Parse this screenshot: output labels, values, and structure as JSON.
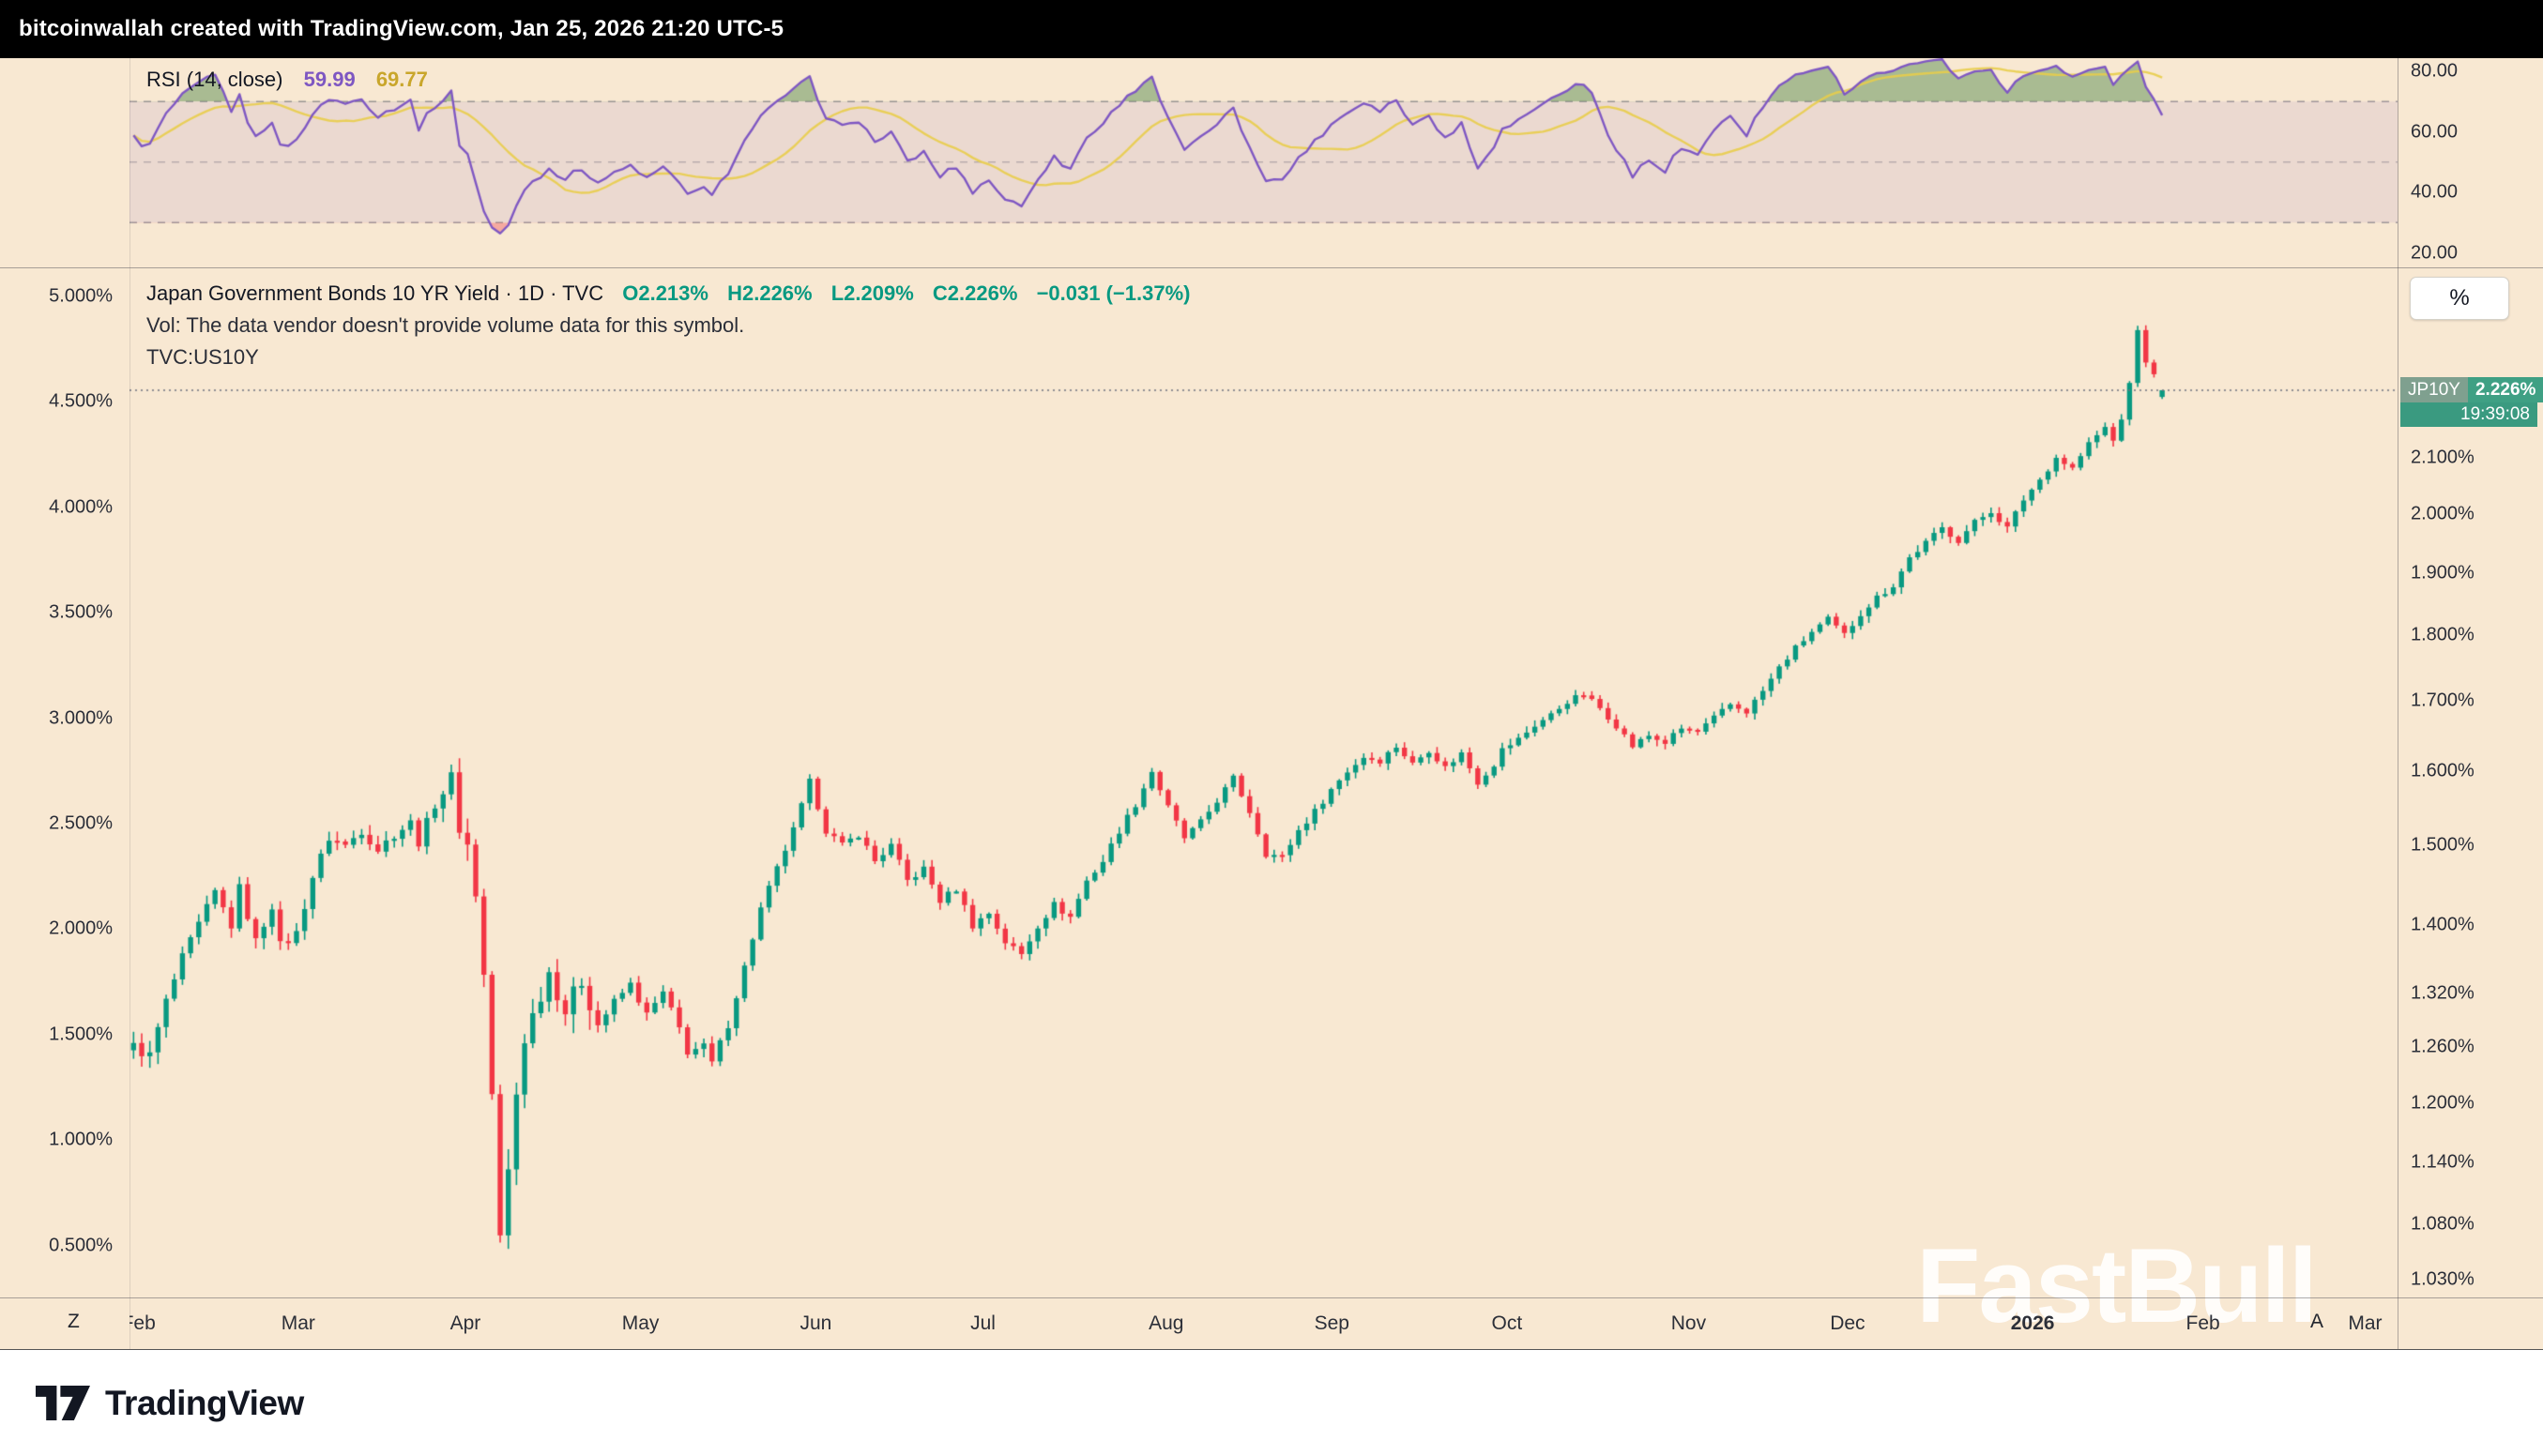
{
  "topbar": {
    "text": "bitcoinwallah created with TradingView.com, Jan 25, 2026 21:20 UTC-5"
  },
  "colors": {
    "background": "#f8e8d2",
    "candle_up": "#089981",
    "candle_down": "#f23645",
    "rsi_line": "#7e57c2",
    "rsi_ma": "#e8cd4a",
    "rsi_band_fill": "rgba(126,87,194,0.10)",
    "rsi_overbought_fill": "rgba(103,150,92,0.55)",
    "rsi_oversold_fill": "rgba(242,54,69,0.35)",
    "level_line": "rgba(90,90,105,0.55)",
    "price_line": "#6f7380",
    "ohlc_text": "#089981",
    "rsi_value_color": "#7e57c2",
    "rsi_ma_value_color": "#c9a62b",
    "price_label_symbol_bg": "#7fa08f",
    "price_label_price_bg": "#3fa084",
    "price_label_countdown_bg": "#3a9a80"
  },
  "rsi_panel": {
    "legend_label": "RSI (14, close)",
    "value": "59.99",
    "ma_value": "69.77",
    "axis_ticks": [
      "80.00",
      "60.00",
      "40.00",
      "20.00"
    ],
    "axis_tick_values": [
      80,
      60,
      40,
      20
    ],
    "range": {
      "min": 15.2,
      "max": 84.34
    },
    "levels": {
      "upper": 70,
      "middle": 50,
      "lower": 30
    }
  },
  "main_panel": {
    "legend": {
      "title": "Japan Government Bonds 10 YR Yield · 1D · TVC",
      "ohlc_parts": [
        "O2.213%",
        "H2.226%",
        "L2.209%",
        "C2.226%",
        "−0.031 (−1.37%)"
      ],
      "vol_note": "Vol: The data vendor doesn't provide volume data for this symbol.",
      "overlay_symbol": "TVC:US10Y"
    },
    "left_axis": {
      "scale": "linear",
      "min": 0.254,
      "max": 5.138,
      "ticks": [
        "5.000%",
        "4.500%",
        "4.000%",
        "3.500%",
        "3.000%",
        "2.500%",
        "2.000%",
        "1.500%",
        "1.000%",
        "0.500%"
      ],
      "tick_values": [
        5.0,
        4.5,
        4.0,
        3.5,
        3.0,
        2.5,
        2.0,
        1.5,
        1.0,
        0.5
      ]
    },
    "right_axis": {
      "scale": "log",
      "min": 1.014,
      "max": 2.476,
      "ticks": [
        "2.100%",
        "2.000%",
        "1.900%",
        "1.800%",
        "1.700%",
        "1.600%",
        "1.500%",
        "1.400%",
        "1.320%",
        "1.260%",
        "1.200%",
        "1.140%",
        "1.080%",
        "1.030%"
      ],
      "tick_values": [
        2.1,
        2.0,
        1.9,
        1.8,
        1.7,
        1.6,
        1.5,
        1.4,
        1.32,
        1.26,
        1.2,
        1.14,
        1.08,
        1.03
      ]
    },
    "percent_button": "%",
    "price_label": {
      "symbol": "JP10Y",
      "price": "2.226%",
      "countdown": "19:39:08",
      "value": 2.226
    }
  },
  "time_axis": {
    "labels": [
      {
        "text": "Feb",
        "pos": 0.004
      },
      {
        "text": "Mar",
        "pos": 0.0744
      },
      {
        "text": "Apr",
        "pos": 0.1481
      },
      {
        "text": "May",
        "pos": 0.2253
      },
      {
        "text": "Jun",
        "pos": 0.3026
      },
      {
        "text": "Jul",
        "pos": 0.3763
      },
      {
        "text": "Aug",
        "pos": 0.4571
      },
      {
        "text": "Sep",
        "pos": 0.5301
      },
      {
        "text": "Oct",
        "pos": 0.6073
      },
      {
        "text": "Nov",
        "pos": 0.6874
      },
      {
        "text": "Dec",
        "pos": 0.7575
      },
      {
        "text": "2026",
        "pos": 0.8391,
        "bold": true
      },
      {
        "text": "Feb",
        "pos": 0.9142
      },
      {
        "text": "Mar",
        "pos": 0.9857
      }
    ],
    "left_hint": "Z",
    "right_hint": "A"
  },
  "watermark": {
    "text": "FastBull"
  },
  "footer": {
    "brand": "TradingView"
  },
  "chart_data": {
    "type": "candlestick",
    "title": "Japan Government Bonds 10 YR Yield",
    "symbol": "JP10Y",
    "exchange": "TVC",
    "timeframe": "1D",
    "unit": "%",
    "x_range": [
      "Feb 2025",
      "Mar 2026"
    ],
    "right_axis_scale": "log",
    "bars_total": 250,
    "data_fraction": 0.898,
    "last_bar": {
      "open": 2.213,
      "high": 2.226,
      "low": 2.209,
      "close": 2.226,
      "change": -0.031,
      "change_pct": -1.37
    },
    "rsi": {
      "period": 14,
      "value": 59.99,
      "ma": 69.77
    },
    "close_anchors": [
      [
        0,
        1.26
      ],
      [
        2,
        1.25
      ],
      [
        4,
        1.31
      ],
      [
        6,
        1.36
      ],
      [
        8,
        1.4
      ],
      [
        10,
        1.44
      ],
      [
        12,
        1.4
      ],
      [
        13,
        1.445
      ],
      [
        15,
        1.38
      ],
      [
        17,
        1.425
      ],
      [
        18,
        1.375
      ],
      [
        20,
        1.39
      ],
      [
        22,
        1.46
      ],
      [
        24,
        1.51
      ],
      [
        26,
        1.5
      ],
      [
        28,
        1.52
      ],
      [
        30,
        1.495
      ],
      [
        32,
        1.515
      ],
      [
        34,
        1.53
      ],
      [
        35,
        1.505
      ],
      [
        37,
        1.555
      ],
      [
        39,
        1.59
      ],
      [
        40,
        1.525
      ],
      [
        41,
        1.5
      ],
      [
        42,
        1.44
      ],
      [
        43,
        1.34
      ],
      [
        44,
        1.21
      ],
      [
        45,
        1.065
      ],
      [
        46,
        1.13
      ],
      [
        47,
        1.21
      ],
      [
        48,
        1.27
      ],
      [
        49,
        1.295
      ],
      [
        51,
        1.345
      ],
      [
        53,
        1.3
      ],
      [
        55,
        1.335
      ],
      [
        57,
        1.285
      ],
      [
        59,
        1.31
      ],
      [
        61,
        1.33
      ],
      [
        63,
        1.295
      ],
      [
        65,
        1.32
      ],
      [
        67,
        1.28
      ],
      [
        68,
        1.255
      ],
      [
        70,
        1.26
      ],
      [
        71,
        1.242
      ],
      [
        73,
        1.285
      ],
      [
        75,
        1.35
      ],
      [
        77,
        1.42
      ],
      [
        79,
        1.47
      ],
      [
        81,
        1.52
      ],
      [
        83,
        1.585
      ],
      [
        85,
        1.52
      ],
      [
        87,
        1.5
      ],
      [
        89,
        1.515
      ],
      [
        91,
        1.48
      ],
      [
        93,
        1.5
      ],
      [
        95,
        1.455
      ],
      [
        97,
        1.47
      ],
      [
        99,
        1.43
      ],
      [
        101,
        1.445
      ],
      [
        103,
        1.4
      ],
      [
        105,
        1.415
      ],
      [
        107,
        1.38
      ],
      [
        109,
        1.365
      ],
      [
        111,
        1.4
      ],
      [
        113,
        1.425
      ],
      [
        115,
        1.41
      ],
      [
        117,
        1.455
      ],
      [
        119,
        1.48
      ],
      [
        121,
        1.52
      ],
      [
        123,
        1.555
      ],
      [
        125,
        1.6
      ],
      [
        127,
        1.55
      ],
      [
        129,
        1.51
      ],
      [
        131,
        1.53
      ],
      [
        133,
        1.56
      ],
      [
        135,
        1.59
      ],
      [
        137,
        1.545
      ],
      [
        139,
        1.49
      ],
      [
        141,
        1.485
      ],
      [
        143,
        1.52
      ],
      [
        145,
        1.545
      ],
      [
        147,
        1.575
      ],
      [
        149,
        1.6
      ],
      [
        151,
        1.62
      ],
      [
        153,
        1.615
      ],
      [
        155,
        1.635
      ],
      [
        157,
        1.61
      ],
      [
        159,
        1.63
      ],
      [
        161,
        1.605
      ],
      [
        163,
        1.625
      ],
      [
        165,
        1.585
      ],
      [
        167,
        1.61
      ],
      [
        168,
        1.63
      ],
      [
        170,
        1.645
      ],
      [
        172,
        1.665
      ],
      [
        174,
        1.68
      ],
      [
        176,
        1.7
      ],
      [
        178,
        1.71
      ],
      [
        180,
        1.69
      ],
      [
        182,
        1.665
      ],
      [
        184,
        1.635
      ],
      [
        186,
        1.65
      ],
      [
        188,
        1.64
      ],
      [
        190,
        1.66
      ],
      [
        192,
        1.655
      ],
      [
        194,
        1.675
      ],
      [
        196,
        1.695
      ],
      [
        198,
        1.685
      ],
      [
        200,
        1.715
      ],
      [
        202,
        1.75
      ],
      [
        204,
        1.78
      ],
      [
        206,
        1.805
      ],
      [
        208,
        1.825
      ],
      [
        210,
        1.8
      ],
      [
        212,
        1.835
      ],
      [
        214,
        1.86
      ],
      [
        216,
        1.88
      ],
      [
        218,
        1.925
      ],
      [
        220,
        1.95
      ],
      [
        222,
        1.975
      ],
      [
        224,
        1.955
      ],
      [
        226,
        1.985
      ],
      [
        228,
        2.005
      ],
      [
        230,
        1.975
      ],
      [
        232,
        2.025
      ],
      [
        234,
        2.06
      ],
      [
        236,
        2.1
      ],
      [
        238,
        2.08
      ],
      [
        240,
        2.125
      ],
      [
        242,
        2.155
      ],
      [
        243,
        2.13
      ],
      [
        244,
        2.17
      ],
      [
        245,
        2.24
      ],
      [
        246,
        2.345
      ],
      [
        247,
        2.28
      ],
      [
        248,
        2.257
      ],
      [
        249,
        2.226
      ]
    ]
  }
}
